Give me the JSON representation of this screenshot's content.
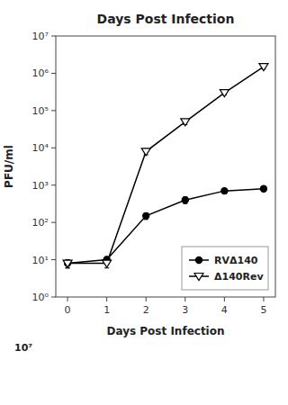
{
  "chart_data": {
    "type": "line",
    "title": "Days Post Infection",
    "x_label": "Days Post Infection",
    "y_label": "PFU/ml",
    "x": [
      0,
      1,
      2,
      3,
      4,
      5
    ],
    "series": [
      {
        "name": "RVΔ140",
        "color": "black",
        "marker": "circle",
        "line_style": "solid",
        "values": [
          8,
          10,
          150,
          400,
          700,
          800
        ],
        "errors": [
          2,
          2,
          30,
          80,
          100,
          120
        ]
      },
      {
        "name": "Δ140Rev",
        "color": "black",
        "marker": "triangle-down-open",
        "line_style": "solid",
        "values": [
          8,
          8,
          8000,
          50000,
          300000,
          1500000
        ],
        "errors": [
          2,
          2,
          1500,
          8000,
          40000,
          200000
        ]
      }
    ],
    "xlim": [
      -0.3,
      5.3
    ],
    "xticks": [
      0,
      1,
      2,
      3,
      4,
      5
    ],
    "ylim": [
      1.0,
      10000000
    ],
    "yticks": [
      {
        "value": 1,
        "label": "10⁰"
      },
      {
        "value": 10,
        "label": "10¹"
      },
      {
        "value": 100,
        "label": "10²"
      },
      {
        "value": 1000,
        "label": "10³"
      },
      {
        "value": 10000,
        "label": "10⁴"
      },
      {
        "value": 100000,
        "label": "10⁵"
      },
      {
        "value": 1000000,
        "label": "10⁶"
      },
      {
        "value": 10000000,
        "label": "10⁷"
      }
    ],
    "log": "y",
    "grid": false,
    "legend": "lower right",
    "annotations": [
      {
        "text": "10⁷"
      }
    ]
  }
}
